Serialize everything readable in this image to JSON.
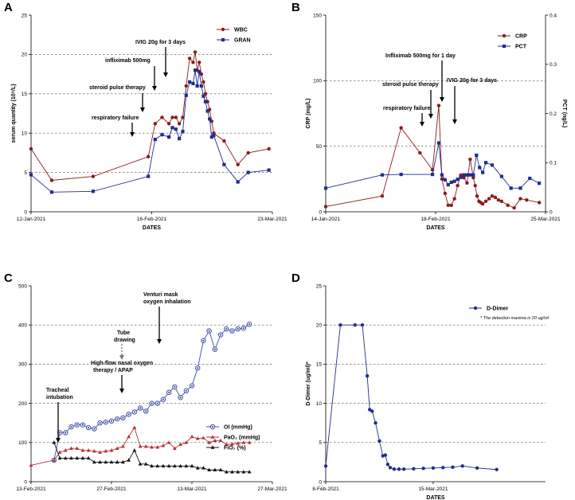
{
  "chart_data": [
    {
      "panel": "A",
      "type": "line",
      "xlabel": "DATES",
      "ylabel": "serum quantity (10⁹/L)",
      "ylim": [
        0,
        25
      ],
      "yticks": [
        0,
        5,
        10,
        15,
        20,
        25
      ],
      "xlim": [
        0,
        70
      ],
      "xticks": [
        {
          "x": 0,
          "label": "12-Jan-2021"
        },
        {
          "x": 35,
          "label": "16-Feb-2021"
        },
        {
          "x": 70,
          "label": "23-Mar-2021"
        }
      ],
      "gridlines": [
        5,
        10,
        15,
        20
      ],
      "series": [
        {
          "name": "WBC",
          "color": "#8b1a1a",
          "marker": "circle",
          "x": [
            0,
            6,
            18,
            34,
            36,
            38,
            40,
            41,
            42,
            43,
            44,
            45,
            46,
            47,
            47.6,
            48.2,
            48.8,
            49.4,
            50,
            50.6,
            51.2,
            51.8,
            52.4,
            53,
            56,
            60,
            63,
            69
          ],
          "y": [
            8,
            4,
            4.5,
            7,
            11.2,
            12,
            11.2,
            12,
            12,
            11.2,
            12,
            16,
            19.5,
            19,
            20.3,
            18,
            19,
            17.5,
            16.5,
            15,
            14,
            13,
            11.5,
            10,
            9,
            6,
            7.5,
            8
          ]
        },
        {
          "name": "GRAN",
          "color": "#1f2d8f",
          "marker": "square",
          "x": [
            0,
            6,
            18,
            34,
            36,
            38,
            40,
            41,
            42,
            43,
            44,
            45,
            46,
            47,
            47.6,
            48.2,
            48.8,
            49.4,
            50,
            50.6,
            51.2,
            51.8,
            52.4,
            53,
            56,
            60,
            63,
            69
          ],
          "y": [
            4.7,
            2.5,
            2.6,
            4.5,
            9.2,
            9.8,
            9.5,
            10.7,
            10.5,
            9.3,
            10.2,
            14.8,
            16.5,
            16.3,
            18,
            16,
            17.8,
            16,
            14.7,
            14,
            12.8,
            11.8,
            9.5,
            9.7,
            6,
            3.8,
            5,
            5.3
          ]
        }
      ],
      "annotations": [
        {
          "text": "IVIG 20g for 3 days",
          "x": 43
        },
        {
          "text": "infliximab 500mg",
          "x": 40
        },
        {
          "text": "steroid pulse therapy",
          "x": 37
        },
        {
          "text": "respiratory failure",
          "x": 34
        }
      ]
    },
    {
      "panel": "B",
      "type": "line",
      "xlabel": "DATES",
      "ylabel": "CRP (mg/L)",
      "ylabel_right": "PCT (ng/L)",
      "ylim": [
        0,
        150
      ],
      "yticks": [
        0,
        50,
        100,
        150
      ],
      "ylim_right": [
        0,
        0.4
      ],
      "yticks_right": [
        0,
        0.1,
        0.2,
        0.3,
        0.4
      ],
      "xlim": [
        0,
        70
      ],
      "xticks": [
        {
          "x": 0,
          "label": "14-Jan-2021"
        },
        {
          "x": 35,
          "label": "18-Feb-2021"
        },
        {
          "x": 70,
          "label": "25-Mar-2021"
        }
      ],
      "gridlines": [
        50,
        100
      ],
      "series": [
        {
          "name": "CRP",
          "color": "#8b1a1a",
          "marker": "circle",
          "axis": "left",
          "x": [
            0,
            18,
            24,
            30,
            34,
            36,
            37,
            38,
            39,
            40,
            41,
            42,
            43,
            44,
            45,
            46,
            47,
            47.6,
            48.2,
            48.8,
            49.4,
            50,
            51,
            52,
            53,
            54,
            55,
            56,
            58,
            60,
            62,
            64,
            68
          ],
          "y": [
            4,
            12,
            64,
            45,
            32,
            81,
            25,
            14,
            5,
            5,
            10,
            20,
            28,
            26,
            22,
            40,
            26,
            20,
            12,
            8,
            7,
            6,
            8,
            10,
            12,
            11,
            9,
            8,
            5,
            3,
            10,
            9,
            7
          ]
        },
        {
          "name": "PCT",
          "color": "#1f2d8f",
          "marker": "square",
          "axis": "right",
          "x": [
            0,
            18,
            24,
            34,
            36,
            37,
            38,
            39,
            40,
            41,
            42,
            43,
            44,
            45,
            46,
            47,
            48,
            49,
            50,
            51,
            53,
            56,
            59,
            62,
            65,
            68
          ],
          "y": [
            0.048,
            0.075,
            0.076,
            0.076,
            0.14,
            0.075,
            0.065,
            0.055,
            0.06,
            0.062,
            0.066,
            0.07,
            0.075,
            0.075,
            0.075,
            0.075,
            0.115,
            0.09,
            0.08,
            0.1,
            0.095,
            0.072,
            0.048,
            0.048,
            0.068,
            0.058
          ]
        }
      ],
      "annotations": [
        {
          "text": "Infliximab 500mg for 1 day",
          "x": 34
        },
        {
          "text": "steroid pulse therapy",
          "x": 32
        },
        {
          "text": "respiratory failure",
          "x": 29
        },
        {
          "text": "IVIG 20g for 3 days",
          "x": 38
        }
      ]
    },
    {
      "panel": "C",
      "type": "line",
      "xlabel": "",
      "ylabel": "",
      "ylim": [
        0,
        500
      ],
      "yticks": [
        0,
        100,
        200,
        300,
        400,
        500
      ],
      "xlim": [
        0,
        42
      ],
      "xticks": [
        {
          "x": 0,
          "label": "13-Feb-2021"
        },
        {
          "x": 14,
          "label": "27-Feb-2021"
        },
        {
          "x": 28,
          "label": "13-Mar-2021"
        },
        {
          "x": 42,
          "label": "27-Mar-2021"
        }
      ],
      "gridlines": [
        100,
        200,
        300,
        400
      ],
      "series": [
        {
          "name": "OI (mmHg)",
          "color": "#3a4ba8",
          "marker": "open-circle",
          "x": [
            4,
            5,
            6,
            7,
            8,
            9,
            10,
            11,
            12,
            13,
            14,
            15,
            16,
            17,
            18,
            19,
            20,
            21,
            22,
            23,
            24,
            25,
            26,
            27,
            28,
            29,
            30,
            31,
            32,
            33,
            34,
            35,
            36,
            37,
            38
          ],
          "y": [
            55,
            125,
            125,
            140,
            145,
            145,
            138,
            135,
            150,
            152,
            155,
            160,
            163,
            172,
            178,
            188,
            180,
            200,
            200,
            210,
            228,
            242,
            215,
            232,
            245,
            290,
            360,
            385,
            338,
            375,
            390,
            385,
            390,
            392,
            402
          ]
        },
        {
          "name": "PaO₂ (mmHg)",
          "color": "#b83232",
          "marker": "triangle",
          "x": [
            0,
            4,
            5,
            6,
            7,
            8,
            9,
            10,
            11,
            12,
            13,
            14,
            15,
            16,
            17,
            18,
            19,
            20,
            21,
            22,
            23,
            24,
            25,
            26,
            27,
            28,
            29,
            30,
            31,
            32,
            33,
            34,
            35,
            36,
            37,
            38
          ],
          "y": [
            42,
            55,
            75,
            80,
            85,
            85,
            80,
            80,
            78,
            75,
            78,
            80,
            85,
            90,
            115,
            138,
            90,
            90,
            88,
            88,
            92,
            100,
            85,
            95,
            100,
            115,
            110,
            112,
            100,
            105,
            105,
            95,
            96,
            98,
            100,
            100
          ]
        },
        {
          "name": "FiO₂ (%)",
          "color": "#111111",
          "marker": "triangle",
          "x": [
            4,
            5,
            6,
            7,
            8,
            9,
            10,
            11,
            12,
            13,
            14,
            15,
            16,
            17,
            18,
            19,
            20,
            21,
            22,
            23,
            24,
            25,
            26,
            27,
            28,
            29,
            30,
            31,
            32,
            33,
            34,
            35,
            36,
            37,
            38
          ],
          "y": [
            100,
            60,
            60,
            60,
            60,
            60,
            60,
            50,
            50,
            50,
            50,
            50,
            50,
            55,
            80,
            45,
            45,
            40,
            40,
            40,
            40,
            40,
            40,
            40,
            40,
            35,
            35,
            30,
            30,
            30,
            25,
            25,
            25,
            25,
            25
          ]
        }
      ],
      "annotations": [
        {
          "text": "Venturi mask oxygen inhalation",
          "x": 25
        },
        {
          "text": "Tracheal intubation",
          "x": 5
        },
        {
          "text": "Tube drawing",
          "x": 18
        },
        {
          "text": "High-flow nasal oxygen therapy / APAP",
          "x": 18
        }
      ]
    },
    {
      "panel": "D",
      "type": "line",
      "xlabel": "DATES",
      "ylabel": "D-Dimer (ug/ml)*",
      "ylim": [
        0,
        25
      ],
      "yticks": [
        0,
        5,
        10,
        15,
        20,
        25
      ],
      "xlim": [
        0,
        45
      ],
      "xticks": [
        {
          "x": 0,
          "label": "8-Feb-2021"
        },
        {
          "x": 22,
          "label": "15-Mar-2021"
        }
      ],
      "gridlines": [
        5,
        10,
        15,
        20
      ],
      "footnote": "* The detection maxima is 20 ug/ml",
      "series": [
        {
          "name": "D-Dimer",
          "color": "#1f2d8f",
          "marker": "circle",
          "x": [
            0,
            3,
            6,
            7.5,
            8.5,
            9,
            9.5,
            10.2,
            11,
            11.7,
            12.2,
            12.7,
            13.2,
            14,
            15,
            16,
            18,
            20,
            22,
            24,
            26,
            28,
            31,
            35
          ],
          "y": [
            2,
            20,
            20,
            20,
            13.5,
            9.2,
            9,
            7.5,
            5.2,
            3.3,
            3.4,
            2.2,
            1.8,
            1.6,
            1.6,
            1.6,
            1.65,
            1.7,
            1.75,
            1.8,
            1.85,
            2.0,
            1.75,
            1.55
          ]
        }
      ]
    }
  ]
}
